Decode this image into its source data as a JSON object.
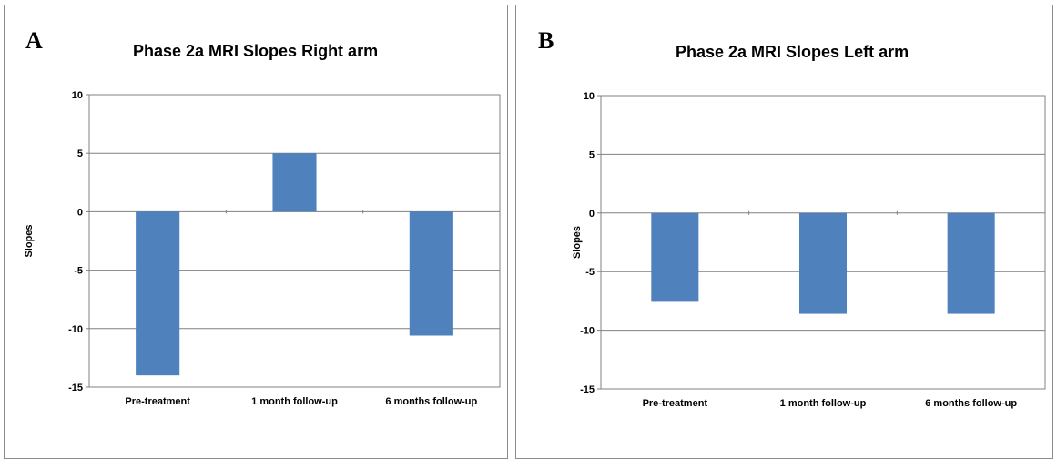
{
  "chart_data": [
    {
      "panel_label": "A",
      "type": "bar",
      "title": "Phase 2a MRI Slopes Right arm",
      "xlabel": "",
      "ylabel": "Slopes",
      "categories": [
        "Pre-treatment",
        "1 month follow-up",
        "6 months follow-up"
      ],
      "values": [
        -14,
        5,
        -10.6
      ],
      "ylim": [
        -15,
        10
      ],
      "yticks": [
        10,
        5,
        0,
        -5,
        -10,
        -15
      ],
      "ytick_labels": [
        "10",
        "5",
        "0",
        "-5",
        "-10",
        "-15"
      ],
      "grid": true,
      "legend": "none",
      "bar_color": "#4f81bd"
    },
    {
      "panel_label": "B",
      "type": "bar",
      "title": "Phase 2a MRI Slopes Left arm",
      "xlabel": "",
      "ylabel": "Slopes",
      "categories": [
        "Pre-treatment",
        "1 month follow-up",
        "6 months follow-up"
      ],
      "values": [
        -7.5,
        -8.6,
        -8.6
      ],
      "ylim": [
        -15,
        10
      ],
      "yticks": [
        10,
        5,
        0,
        -5,
        -10,
        -15
      ],
      "ytick_labels": [
        "10",
        "5",
        "0",
        "-5",
        "-10",
        "-15"
      ],
      "grid": true,
      "legend": "none",
      "bar_color": "#4f81bd"
    }
  ]
}
